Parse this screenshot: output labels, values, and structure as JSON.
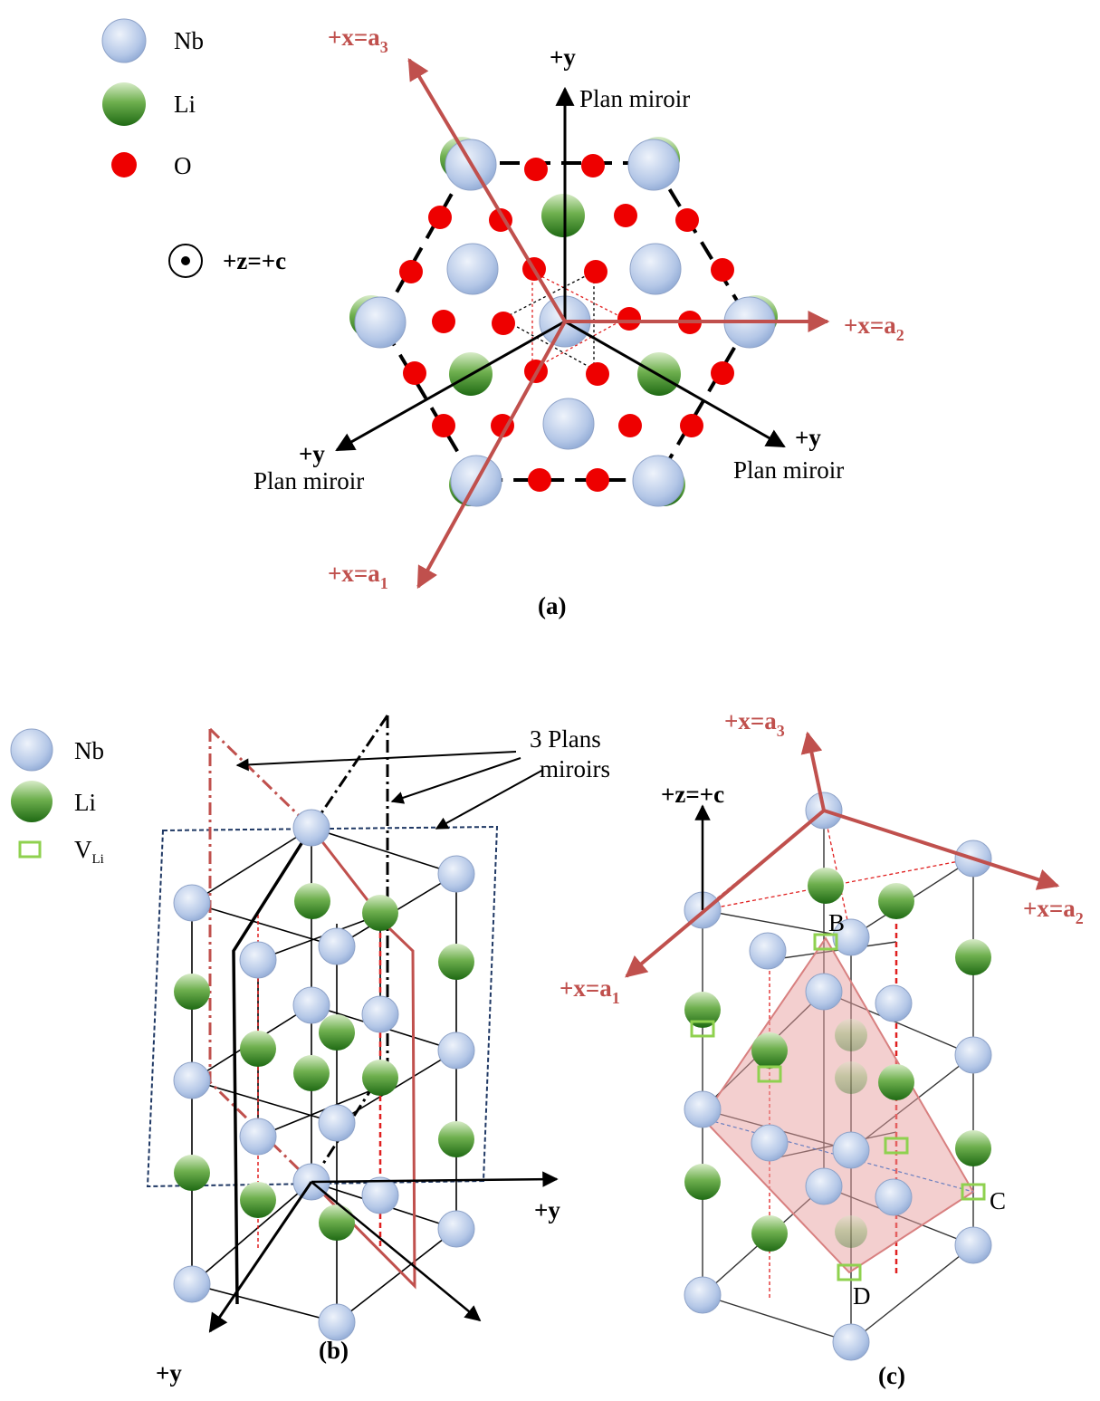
{
  "colors": {
    "nb": "#b4c7e7",
    "li": "#3f8f2f",
    "o": "#ee0000",
    "axis_red": "#c0504d",
    "vacancy": "#8fd14f",
    "plane_fill": "#e8a0a0",
    "mirror_blue": "#1f3864"
  },
  "panel_a": {
    "legend": {
      "nb": "Nb",
      "li": "Li",
      "o": "O"
    },
    "z_axis": "+z=+c",
    "axes": {
      "a3": "+x=a",
      "a3_sub": "3",
      "a2": "+x=a",
      "a2_sub": "2",
      "a1": "+x=a",
      "a1_sub": "1",
      "y_top": "+y",
      "y_left": "+y",
      "y_right": "+y"
    },
    "mirror_top": "Plan miroir",
    "mirror_left": "Plan miroir",
    "mirror_right": "Plan miroir",
    "caption": "(a)"
  },
  "panel_b": {
    "legend": {
      "nb": "Nb",
      "li": "Li",
      "v": "V",
      "v_sub": "Li"
    },
    "mirrors_line1": "3 Plans",
    "mirrors_line2": "miroirs",
    "y_right": "+y",
    "y_bottom": "+y",
    "caption": "(b)"
  },
  "panel_c": {
    "z_axis": "+z=+c",
    "a3": "+x=a",
    "a3_sub": "3",
    "a2": "+x=a",
    "a2_sub": "2",
    "a1": "+x=a",
    "a1_sub": "1",
    "point_b": "B",
    "point_c": "C",
    "point_d": "D",
    "caption": "(c)"
  }
}
